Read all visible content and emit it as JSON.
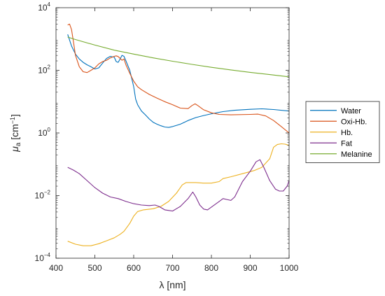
{
  "chart_data": {
    "type": "line",
    "xlabel": "λ [nm]",
    "ylabel_main": "μ",
    "ylabel_sub": "a",
    "ylabel_unit_open": " [cm",
    "ylabel_unit_sup": "−1",
    "ylabel_unit_close": "]",
    "xlim": [
      400,
      1000
    ],
    "ylim": [
      0.0001,
      10000
    ],
    "yscale": "log",
    "grid": false,
    "legend_position": "right-outside",
    "x_ticks": [
      400,
      500,
      600,
      700,
      800,
      900,
      1000
    ],
    "y_ticks": [
      {
        "value": 0.0001,
        "base": "10",
        "exp": "−4"
      },
      {
        "value": 0.01,
        "base": "10",
        "exp": "−2"
      },
      {
        "value": 1,
        "base": "10",
        "exp": "0"
      },
      {
        "value": 100,
        "base": "10",
        "exp": "2"
      },
      {
        "value": 10000,
        "base": "10",
        "exp": "4"
      }
    ],
    "series": [
      {
        "name": "Water",
        "color": "#0072BD",
        "points": [
          [
            430,
            1400
          ],
          [
            440,
            600
          ],
          [
            450,
            330
          ],
          [
            460,
            230
          ],
          [
            470,
            180
          ],
          [
            480,
            150
          ],
          [
            490,
            130
          ],
          [
            500,
            110
          ],
          [
            510,
            120
          ],
          [
            520,
            170
          ],
          [
            530,
            240
          ],
          [
            540,
            280
          ],
          [
            550,
            260
          ],
          [
            555,
            190
          ],
          [
            560,
            180
          ],
          [
            565,
            230
          ],
          [
            570,
            300
          ],
          [
            575,
            280
          ],
          [
            580,
            200
          ],
          [
            590,
            100
          ],
          [
            600,
            30
          ],
          [
            605,
            12
          ],
          [
            610,
            8
          ],
          [
            620,
            5
          ],
          [
            630,
            3.8
          ],
          [
            640,
            2.8
          ],
          [
            650,
            2.2
          ],
          [
            660,
            1.9
          ],
          [
            670,
            1.7
          ],
          [
            680,
            1.55
          ],
          [
            690,
            1.5
          ],
          [
            700,
            1.6
          ],
          [
            720,
            1.9
          ],
          [
            740,
            2.5
          ],
          [
            760,
            3.1
          ],
          [
            780,
            3.6
          ],
          [
            800,
            4.1
          ],
          [
            830,
            4.8
          ],
          [
            860,
            5.3
          ],
          [
            900,
            5.7
          ],
          [
            930,
            5.9
          ],
          [
            960,
            5.6
          ],
          [
            1000,
            5.0
          ]
        ]
      },
      {
        "name": "Oxi-Hb.",
        "color": "#D95319",
        "points": [
          [
            430,
            2800
          ],
          [
            435,
            3000
          ],
          [
            440,
            2000
          ],
          [
            445,
            800
          ],
          [
            450,
            300
          ],
          [
            460,
            130
          ],
          [
            470,
            90
          ],
          [
            480,
            85
          ],
          [
            490,
            100
          ],
          [
            500,
            120
          ],
          [
            510,
            160
          ],
          [
            520,
            190
          ],
          [
            530,
            210
          ],
          [
            540,
            250
          ],
          [
            550,
            280
          ],
          [
            555,
            290
          ],
          [
            560,
            275
          ],
          [
            570,
            210
          ],
          [
            575,
            230
          ],
          [
            580,
            150
          ],
          [
            590,
            80
          ],
          [
            600,
            45
          ],
          [
            610,
            30
          ],
          [
            620,
            24
          ],
          [
            640,
            17
          ],
          [
            660,
            13
          ],
          [
            680,
            10
          ],
          [
            700,
            8
          ],
          [
            720,
            6.2
          ],
          [
            740,
            6.0
          ],
          [
            750,
            7.5
          ],
          [
            758,
            8.5
          ],
          [
            765,
            7.5
          ],
          [
            780,
            5.5
          ],
          [
            800,
            4.4
          ],
          [
            820,
            3.9
          ],
          [
            850,
            3.8
          ],
          [
            900,
            3.9
          ],
          [
            920,
            4.0
          ],
          [
            940,
            3.5
          ],
          [
            960,
            2.5
          ],
          [
            980,
            1.6
          ],
          [
            1000,
            1.0
          ]
        ]
      },
      {
        "name": "Hb.",
        "color": "#EDB120",
        "points": [
          [
            430,
            0.00035
          ],
          [
            450,
            0.00028
          ],
          [
            470,
            0.00025
          ],
          [
            490,
            0.00025
          ],
          [
            510,
            0.00029
          ],
          [
            530,
            0.00036
          ],
          [
            550,
            0.00045
          ],
          [
            565,
            0.00058
          ],
          [
            575,
            0.00072
          ],
          [
            590,
            0.0013
          ],
          [
            600,
            0.0022
          ],
          [
            610,
            0.0031
          ],
          [
            625,
            0.0035
          ],
          [
            650,
            0.0038
          ],
          [
            670,
            0.0045
          ],
          [
            690,
            0.0065
          ],
          [
            710,
            0.012
          ],
          [
            725,
            0.022
          ],
          [
            735,
            0.026
          ],
          [
            760,
            0.026
          ],
          [
            780,
            0.025
          ],
          [
            800,
            0.025
          ],
          [
            820,
            0.028
          ],
          [
            830,
            0.035
          ],
          [
            850,
            0.04
          ],
          [
            880,
            0.05
          ],
          [
            910,
            0.063
          ],
          [
            930,
            0.08
          ],
          [
            950,
            0.15
          ],
          [
            960,
            0.35
          ],
          [
            970,
            0.43
          ],
          [
            980,
            0.45
          ],
          [
            990,
            0.44
          ],
          [
            1000,
            0.4
          ]
        ]
      },
      {
        "name": "Fat",
        "color": "#7E2F8E",
        "points": [
          [
            430,
            0.08
          ],
          [
            445,
            0.065
          ],
          [
            460,
            0.05
          ],
          [
            480,
            0.03
          ],
          [
            500,
            0.018
          ],
          [
            520,
            0.012
          ],
          [
            540,
            0.009
          ],
          [
            560,
            0.008
          ],
          [
            580,
            0.0065
          ],
          [
            600,
            0.0055
          ],
          [
            620,
            0.005
          ],
          [
            640,
            0.0048
          ],
          [
            655,
            0.005
          ],
          [
            665,
            0.0045
          ],
          [
            680,
            0.0035
          ],
          [
            700,
            0.0032
          ],
          [
            720,
            0.0045
          ],
          [
            740,
            0.008
          ],
          [
            752,
            0.013
          ],
          [
            760,
            0.009
          ],
          [
            770,
            0.005
          ],
          [
            780,
            0.0037
          ],
          [
            790,
            0.0035
          ],
          [
            800,
            0.0043
          ],
          [
            820,
            0.0065
          ],
          [
            830,
            0.008
          ],
          [
            840,
            0.0075
          ],
          [
            850,
            0.007
          ],
          [
            860,
            0.009
          ],
          [
            880,
            0.028
          ],
          [
            900,
            0.06
          ],
          [
            915,
            0.12
          ],
          [
            925,
            0.14
          ],
          [
            935,
            0.08
          ],
          [
            950,
            0.03
          ],
          [
            965,
            0.016
          ],
          [
            975,
            0.014
          ],
          [
            985,
            0.014
          ],
          [
            995,
            0.02
          ],
          [
            1000,
            0.03
          ]
        ]
      },
      {
        "name": "Melanine",
        "color": "#77AC30",
        "points": [
          [
            430,
            1150
          ],
          [
            450,
            960
          ],
          [
            500,
            640
          ],
          [
            550,
            440
          ],
          [
            600,
            330
          ],
          [
            650,
            250
          ],
          [
            700,
            195
          ],
          [
            750,
            155
          ],
          [
            800,
            125
          ],
          [
            850,
            103
          ],
          [
            900,
            86
          ],
          [
            950,
            73
          ],
          [
            1000,
            62
          ]
        ]
      }
    ]
  }
}
